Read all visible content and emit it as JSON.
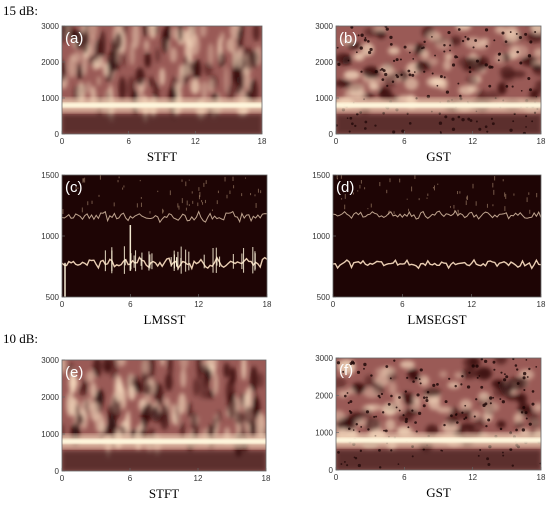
{
  "sections": {
    "first": "15 dB:",
    "second": "10 dB:"
  },
  "colors": {
    "dark": "#2a0808",
    "mid": "#9a5a56",
    "light": "#f4d8bc",
    "ridge": "#fff6dc"
  },
  "chart_data": [
    {
      "id": "a",
      "panel_label": "(a)",
      "type": "heatmap",
      "xlabel": "STFT",
      "xlim": [
        0,
        18
      ],
      "ylim": [
        0,
        3000
      ],
      "x_ticks": [
        0,
        6,
        12,
        18
      ],
      "y_ticks": [
        0,
        1000,
        2000,
        3000
      ],
      "ridges": [
        {
          "y": 800
        }
      ]
    },
    {
      "id": "b",
      "panel_label": "(b)",
      "type": "heatmap",
      "xlabel": "GST",
      "xlim": [
        0,
        18
      ],
      "ylim": [
        0,
        3000
      ],
      "x_ticks": [
        0,
        6,
        12,
        18
      ],
      "y_ticks": [
        0,
        1000,
        2000,
        3000
      ],
      "ridges": [
        {
          "y": 800
        }
      ]
    },
    {
      "id": "c",
      "panel_label": "(c)",
      "type": "heatmap",
      "xlabel": "LMSST",
      "xlim": [
        0,
        18
      ],
      "ylim": [
        500,
        1500
      ],
      "x_ticks": [
        0,
        6,
        12,
        18
      ],
      "y_ticks": [
        500,
        1000,
        1500
      ],
      "ridges": [
        {
          "y": 780
        },
        {
          "y": 1160
        }
      ]
    },
    {
      "id": "d",
      "panel_label": "(d)",
      "type": "heatmap",
      "xlabel": "LMSEGST",
      "xlim": [
        0,
        18
      ],
      "ylim": [
        500,
        1500
      ],
      "x_ticks": [
        0,
        6,
        12,
        18
      ],
      "y_ticks": [
        500,
        1000,
        1500
      ],
      "ridges": [
        {
          "y": 770
        },
        {
          "y": 1170
        }
      ]
    },
    {
      "id": "e",
      "panel_label": "(e)",
      "type": "heatmap",
      "xlabel": "STFT",
      "xlim": [
        0,
        18
      ],
      "ylim": [
        0,
        3000
      ],
      "x_ticks": [
        0,
        6,
        12,
        18
      ],
      "y_ticks": [
        0,
        1000,
        2000,
        3000
      ],
      "ridges": [
        {
          "y": 800
        }
      ]
    },
    {
      "id": "f",
      "panel_label": "(f)",
      "type": "heatmap",
      "xlabel": "GST",
      "xlim": [
        0,
        18
      ],
      "ylim": [
        0,
        3000
      ],
      "x_ticks": [
        0,
        6,
        12,
        18
      ],
      "y_ticks": [
        0,
        1000,
        2000,
        3000
      ],
      "ridges": [
        {
          "y": 800
        }
      ]
    }
  ]
}
